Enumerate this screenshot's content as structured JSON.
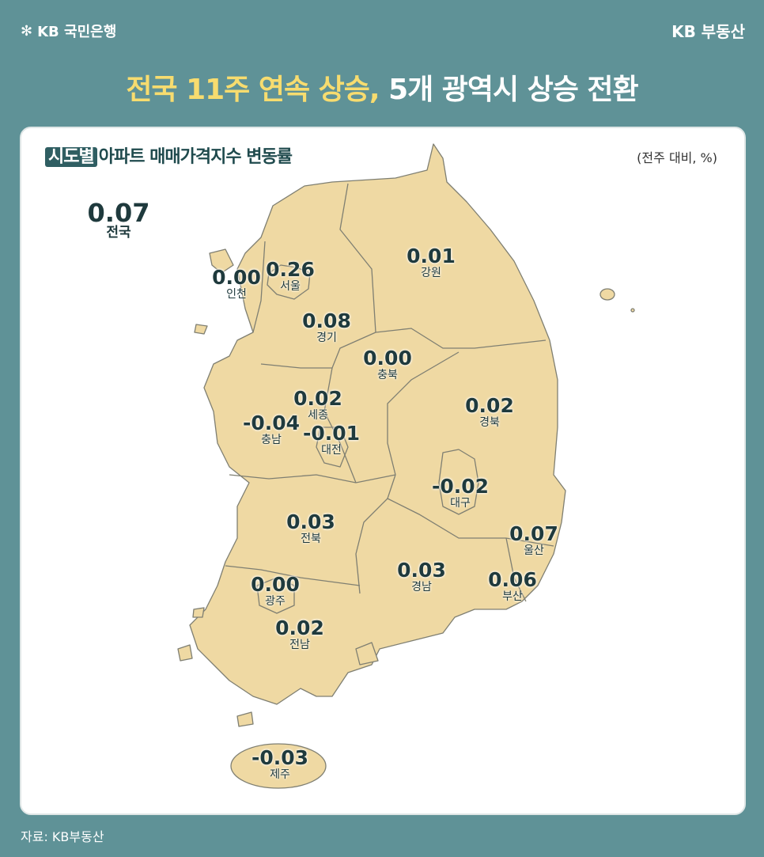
{
  "header": {
    "logo_text": "KB 국민은행",
    "brand": "KB 부동산",
    "title_highlight": "전국 11주 연속 상승,",
    "title_rest": " 5개 광역시 상승 전환"
  },
  "card": {
    "subtitle_tag": "시도별",
    "subtitle_rest": "아파트 매매가격지수 변동률",
    "unit": "(전주 대비, %)"
  },
  "national": {
    "value": "0.07",
    "name": "전국"
  },
  "regions": [
    {
      "name": "서울",
      "value": "0.26"
    },
    {
      "name": "인천",
      "value": "0.00"
    },
    {
      "name": "경기",
      "value": "0.08"
    },
    {
      "name": "강원",
      "value": "0.01"
    },
    {
      "name": "충북",
      "value": "0.00"
    },
    {
      "name": "세종",
      "value": "0.02"
    },
    {
      "name": "충남",
      "value": "-0.04"
    },
    {
      "name": "대전",
      "value": "-0.01"
    },
    {
      "name": "경북",
      "value": "0.02"
    },
    {
      "name": "대구",
      "value": "-0.02"
    },
    {
      "name": "전북",
      "value": "0.03"
    },
    {
      "name": "울산",
      "value": "0.07"
    },
    {
      "name": "경남",
      "value": "0.03"
    },
    {
      "name": "부산",
      "value": "0.06"
    },
    {
      "name": "광주",
      "value": "0.00"
    },
    {
      "name": "전남",
      "value": "0.02"
    },
    {
      "name": "제주",
      "value": "-0.03"
    }
  ],
  "source": "자료: KB부동산",
  "colors": {
    "background": "#5f9297",
    "map_fill": "#efd9a3",
    "title_highlight": "#f7dc6f",
    "text": "#1f3a3d"
  }
}
